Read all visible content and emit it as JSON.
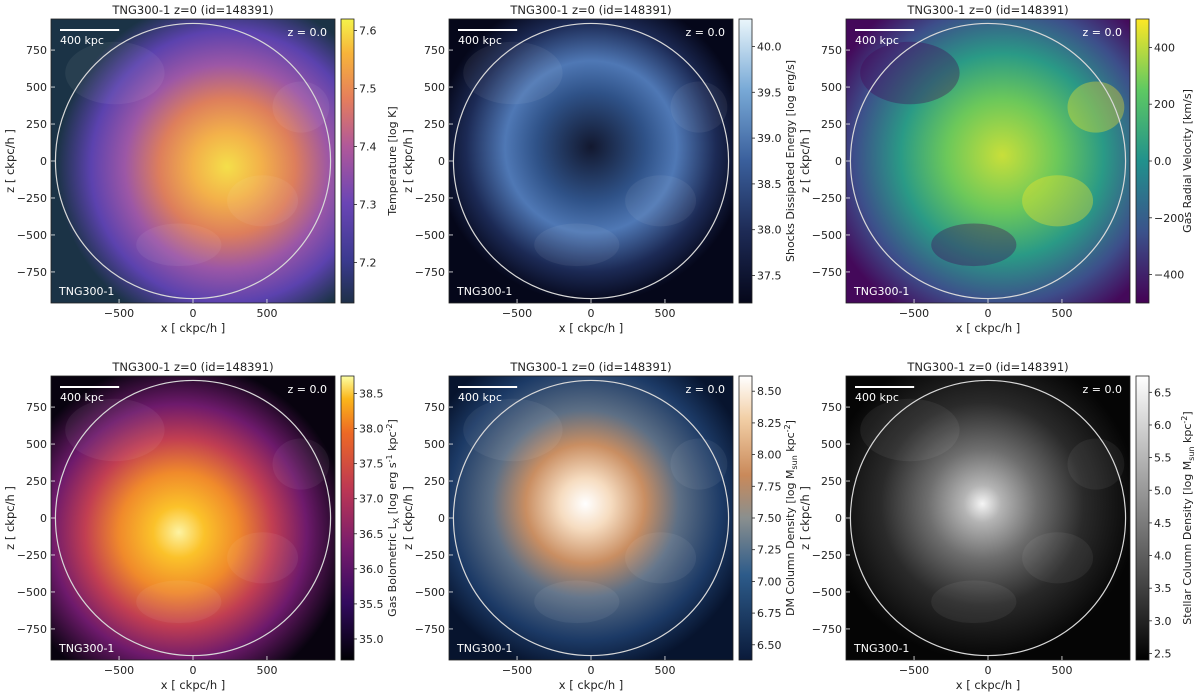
{
  "figure": {
    "x_axis_label": "x [ ckpc/h ]",
    "y_axis_label": "z [ ckpc/h ]",
    "scale_bar_label": "400 kpc",
    "redshift_label": "z = 0.0",
    "sim_label": "TNG300-1",
    "x_ticks": [
      -500,
      0,
      500
    ],
    "y_ticks": [
      750,
      500,
      250,
      0,
      -250,
      -500,
      -750
    ],
    "x_range": [
      -960,
      960
    ],
    "y_range": [
      -960,
      960
    ],
    "circle_radius": 930,
    "scale_bar_length": 400
  },
  "chart_data": [
    {
      "type": "heatmap",
      "title": "TNG300-1 z=0 (id=148391)",
      "quantity": "Gas temperature map",
      "colorbar_label": "Temperature [log K]",
      "colorbar_ticks": [
        7.2,
        7.3,
        7.4,
        7.5,
        7.6
      ],
      "colorbar_range": [
        7.13,
        7.62
      ],
      "colormap": "plasma",
      "xlabel": "x [ ckpc/h ]",
      "ylabel": "z [ ckpc/h ]",
      "xlim": [
        -960,
        960
      ],
      "ylim": [
        -960,
        960
      ]
    },
    {
      "type": "heatmap",
      "title": "TNG300-1 z=0 (id=148391)",
      "quantity": "Shocks dissipated energy map",
      "colorbar_label": "Shocks Dissipated Energy [log erg/s]",
      "colorbar_ticks": [
        37.5,
        38.0,
        38.5,
        39.0,
        39.5,
        40.0
      ],
      "colorbar_range": [
        37.2,
        40.3
      ],
      "colormap": "ice",
      "xlabel": "x [ ckpc/h ]",
      "ylabel": "z [ ckpc/h ]",
      "xlim": [
        -960,
        960
      ],
      "ylim": [
        -960,
        960
      ]
    },
    {
      "type": "heatmap",
      "title": "TNG300-1 z=0 (id=148391)",
      "quantity": "Gas radial velocity map",
      "colorbar_label": "Gas Radial Velocity [km/s]",
      "colorbar_ticks": [
        -400,
        -200,
        0,
        200,
        400
      ],
      "colorbar_range": [
        -500,
        500
      ],
      "colormap": "viridis",
      "xlabel": "x [ ckpc/h ]",
      "ylabel": "z [ ckpc/h ]",
      "xlim": [
        -960,
        960
      ],
      "ylim": [
        -960,
        960
      ]
    },
    {
      "type": "heatmap",
      "title": "TNG300-1 z=0 (id=148391)",
      "quantity": "Gas bolometric X-ray luminosity map",
      "colorbar_label": "Gas Bolometric L",
      "colorbar_label_sub": "X",
      "colorbar_label_tail": " [log erg s",
      "colorbar_label_sup1": "-1",
      "colorbar_label_tail2": " kpc",
      "colorbar_label_sup2": "-2",
      "colorbar_label_end": "]",
      "colorbar_ticks": [
        35.0,
        35.5,
        36.0,
        36.5,
        37.0,
        37.5,
        38.0,
        38.5
      ],
      "colorbar_range": [
        34.7,
        38.75
      ],
      "colormap": "inferno",
      "xlabel": "x [ ckpc/h ]",
      "ylabel": "z [ ckpc/h ]",
      "xlim": [
        -960,
        960
      ],
      "ylim": [
        -960,
        960
      ]
    },
    {
      "type": "heatmap",
      "title": "TNG300-1 z=0 (id=148391)",
      "quantity": "Dark matter column density map",
      "colorbar_label": "DM Column Density [log M",
      "colorbar_label_sub": "sun",
      "colorbar_label_tail": " kpc",
      "colorbar_label_sup1": "-2",
      "colorbar_label_end": "]",
      "colorbar_ticks": [
        6.5,
        6.75,
        7.0,
        7.25,
        7.5,
        7.75,
        8.0,
        8.25,
        8.5
      ],
      "colorbar_tick_labels": [
        "6.50",
        "6.75",
        "7.00",
        "7.25",
        "7.50",
        "7.75",
        "8.00",
        "8.25",
        "8.50"
      ],
      "colorbar_range": [
        6.38,
        8.62
      ],
      "colormap": "blue-orange-white",
      "xlabel": "x [ ckpc/h ]",
      "ylabel": "z [ ckpc/h ]",
      "xlim": [
        -960,
        960
      ],
      "ylim": [
        -960,
        960
      ]
    },
    {
      "type": "heatmap",
      "title": "TNG300-1 z=0 (id=148391)",
      "quantity": "Stellar column density map",
      "colorbar_label": "Stellar Column Density [log M",
      "colorbar_label_sub": "sun",
      "colorbar_label_tail": " kpc",
      "colorbar_label_sup1": "-2",
      "colorbar_label_end": "]",
      "colorbar_ticks": [
        2.5,
        3.0,
        3.5,
        4.0,
        4.5,
        5.0,
        5.5,
        6.0,
        6.5
      ],
      "colorbar_range": [
        2.4,
        6.75
      ],
      "colormap": "gray",
      "xlabel": "x [ ckpc/h ]",
      "ylabel": "z [ ckpc/h ]",
      "xlim": [
        -960,
        960
      ],
      "ylim": [
        -960,
        960
      ]
    }
  ]
}
